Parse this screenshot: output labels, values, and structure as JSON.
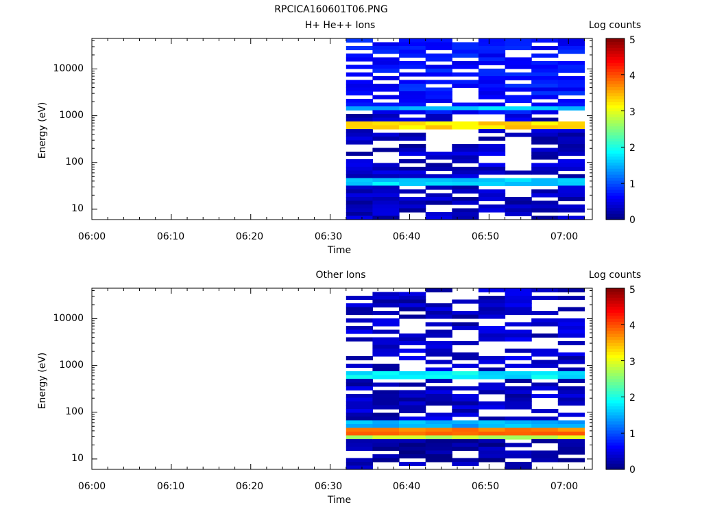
{
  "figure": {
    "title": "RPCICA160601T06.PNG"
  },
  "chart_data": [
    {
      "type": "heatmap",
      "title": "H+ He++ Ions",
      "xlabel": "Time",
      "ylabel": "Energy (eV)",
      "colorbar_label": "Log counts",
      "xlim": [
        "06:00",
        "07:03"
      ],
      "ylim": [
        6,
        45000
      ],
      "yscale": "log",
      "x_tick_labels": [
        "06:00",
        "06:10",
        "06:20",
        "06:30",
        "06:40",
        "06:50",
        "07:00"
      ],
      "y_tick_labels": [
        "10",
        "100",
        "1000",
        "10000"
      ],
      "colorbar_range": [
        0,
        5
      ],
      "colorbar_tick_labels": [
        "0",
        "1",
        "2",
        "3",
        "4",
        "5"
      ],
      "data_start": "06:32",
      "data_end": "07:02",
      "time_bins": 9,
      "features": [
        {
          "energy_range_eV": [
            500,
            800
          ],
          "log_counts": 3.3
        },
        {
          "energy_range_eV": [
            30,
            50
          ],
          "log_counts": 1.7
        },
        {
          "energy_range_eV": [
            1200,
            1500
          ],
          "log_counts": 1.6
        },
        {
          "energy_range_eV": [
            1000,
            45000
          ],
          "log_counts": 0.7
        },
        {
          "energy_range_eV": [
            8,
            30
          ],
          "log_counts": 0.3
        }
      ]
    },
    {
      "type": "heatmap",
      "title": "Other Ions",
      "xlabel": "Time",
      "ylabel": "Energy (eV)",
      "colorbar_label": "Log counts",
      "xlim": [
        "06:00",
        "07:03"
      ],
      "ylim": [
        6,
        45000
      ],
      "yscale": "log",
      "x_tick_labels": [
        "06:00",
        "06:10",
        "06:20",
        "06:30",
        "06:40",
        "06:50",
        "07:00"
      ],
      "y_tick_labels": [
        "10",
        "100",
        "1000",
        "10000"
      ],
      "colorbar_range": [
        0,
        5
      ],
      "colorbar_tick_labels": [
        "0",
        "1",
        "2",
        "3",
        "4",
        "5"
      ],
      "data_start": "06:32",
      "data_end": "07:02",
      "time_bins": 9,
      "features": [
        {
          "energy_range_eV": [
            30,
            45
          ],
          "log_counts": 3.8
        },
        {
          "energy_range_eV": [
            25,
            30
          ],
          "log_counts": 2.8
        },
        {
          "energy_range_eV": [
            45,
            70
          ],
          "log_counts": 1.5
        },
        {
          "energy_range_eV": [
            550,
            800
          ],
          "log_counts": 1.8
        },
        {
          "energy_range_eV": [
            8,
            25
          ],
          "log_counts": 0.2
        }
      ]
    }
  ]
}
